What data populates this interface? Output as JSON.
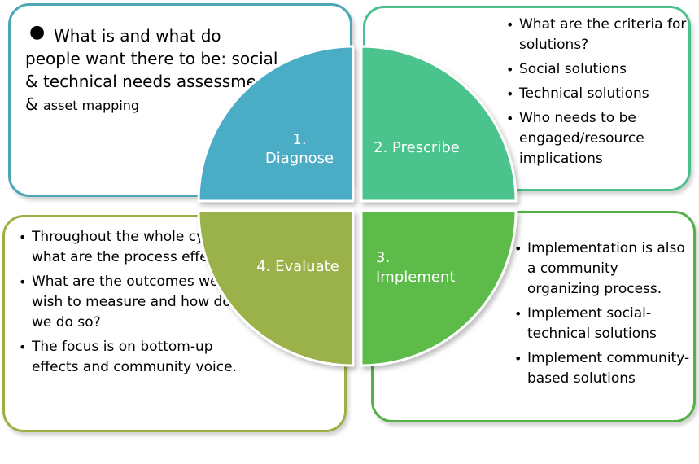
{
  "diagnose": {
    "label_num": "1.",
    "label": "Diagnose",
    "text_first": "What is and what do",
    "text_rest": "people want there to be: social & technical needs assessment & ",
    "text_small": "asset mapping"
  },
  "prescribe": {
    "label": "2. Prescribe",
    "bullets": [
      "What are the criteria for solutions?",
      "Social solutions",
      "Technical solutions",
      "Who needs to be engaged/resource implications"
    ]
  },
  "implement": {
    "label_num": "3.",
    "label": "Implement",
    "bullets": [
      "Implementation is also a community organizing process.",
      "Implement social-technical solutions",
      "Implement community-based solutions"
    ]
  },
  "evaluate": {
    "label": "4. Evaluate",
    "bullets": [
      "Throughout the whole cycle, what are the process effects",
      "What are the outcomes we wish to measure and how do we do so?",
      "The focus is on bottom-up effects and community voice."
    ]
  },
  "colors": {
    "diagnose": "#4bacc6",
    "prescribe": "#4bc38c",
    "implement": "#5cbb4a",
    "evaluate": "#9bb14a"
  }
}
